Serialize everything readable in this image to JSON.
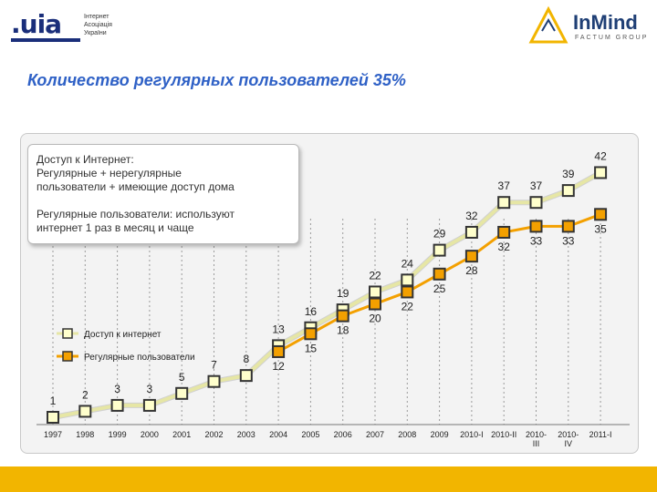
{
  "header": {
    "uia_logo": {
      "mark_text": ".uia",
      "subtitle_lines": [
        "Інтернет",
        "Асоціація",
        "України"
      ]
    },
    "inmind_logo": {
      "name": "InMind",
      "tagline": "FACTUM GROUP"
    }
  },
  "page_title": "Количество регулярных пользователей 35%",
  "note": {
    "line1": "Доступ к Интернет:",
    "line2": "Регулярные + нерегулярные",
    "line3": "пользователи + имеющие доступ дома",
    "line4": "Регулярные пользователи: используют",
    "line5": "интернет 1 раз в месяц и чаще"
  },
  "chart_data": {
    "type": "line",
    "categories": [
      "1997",
      "1998",
      "1999",
      "2000",
      "2001",
      "2002",
      "2003",
      "2004",
      "2005",
      "2006",
      "2007",
      "2008",
      "2009",
      "2010-I",
      "2010-II",
      "2010-III",
      "2010-IV",
      "2011-I"
    ],
    "tick_labels": [
      [
        "1997"
      ],
      [
        "1998"
      ],
      [
        "1999"
      ],
      [
        "2000"
      ],
      [
        "2001"
      ],
      [
        "2002"
      ],
      [
        "2003"
      ],
      [
        "2004"
      ],
      [
        "2005"
      ],
      [
        "2006"
      ],
      [
        "2007"
      ],
      [
        "2008"
      ],
      [
        "2009"
      ],
      [
        "2010-I"
      ],
      [
        "2010-II"
      ],
      [
        "2010-",
        "III"
      ],
      [
        "2010-",
        "IV"
      ],
      [
        "2011-I"
      ]
    ],
    "series": [
      {
        "name": "Доступ к интернет",
        "color": "#e6e6a5",
        "values": [
          1,
          2,
          3,
          3,
          5,
          7,
          8,
          13,
          16,
          19,
          22,
          24,
          29,
          32,
          37,
          37,
          39,
          42
        ]
      },
      {
        "name": "Регулярные пользователи",
        "color": "#f3a000",
        "values": [
          null,
          null,
          null,
          null,
          null,
          null,
          null,
          12,
          15,
          18,
          20,
          22,
          25,
          28,
          32,
          33,
          33,
          35
        ]
      }
    ],
    "ylim": [
      0,
      45
    ],
    "legend": {
      "position": "left",
      "items": [
        "Доступ к интернет",
        "Регулярные пользователи"
      ]
    },
    "grid": "vertical dashed",
    "title": "",
    "xlabel": "",
    "ylabel": ""
  }
}
